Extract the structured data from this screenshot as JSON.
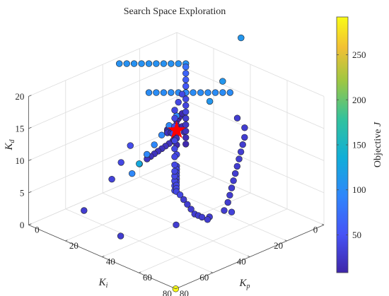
{
  "chart_data": {
    "type": "scatter3d",
    "title": "Search Space Exploration",
    "axes": {
      "x": {
        "label": "K",
        "subscript": "p",
        "ticks": [
          0,
          20,
          40,
          60,
          80
        ],
        "lim": [
          0,
          80
        ]
      },
      "y": {
        "label": "K",
        "subscript": "i",
        "ticks": [
          0,
          20,
          40,
          60,
          80
        ],
        "lim": [
          0,
          80
        ]
      },
      "z": {
        "label": "K",
        "subscript": "d",
        "ticks": [
          0,
          5,
          10,
          15,
          20
        ],
        "lim": [
          0,
          20
        ]
      }
    },
    "colorbar": {
      "label": "Objective ",
      "label_var": "J",
      "ticks": [
        50,
        100,
        150,
        200,
        250
      ],
      "range": [
        8,
        292
      ],
      "colormap": "parula"
    },
    "grid": true,
    "best_marker": {
      "x": 13,
      "y": 13,
      "z": 8,
      "shape": "star",
      "color": "#ff0000"
    },
    "points": [
      {
        "x": 20,
        "y": 15,
        "z": 19.5,
        "j": 105
      },
      {
        "x": 18,
        "y": 17,
        "z": 19.5,
        "j": 105
      },
      {
        "x": 16,
        "y": 19,
        "z": 19.5,
        "j": 105
      },
      {
        "x": 14,
        "y": 21,
        "z": 19.5,
        "j": 105
      },
      {
        "x": 12,
        "y": 23,
        "z": 19.5,
        "j": 105
      },
      {
        "x": 10,
        "y": 25,
        "z": 19.5,
        "j": 105
      },
      {
        "x": 8,
        "y": 27,
        "z": 19.5,
        "j": 105
      },
      {
        "x": 6,
        "y": 29,
        "z": 19.5,
        "j": 105
      },
      {
        "x": 4,
        "y": 31,
        "z": 19.5,
        "j": 105
      },
      {
        "x": 2,
        "y": 33,
        "z": 19.5,
        "j": 105
      },
      {
        "x": 20,
        "y": 15,
        "z": 19,
        "j": 75
      },
      {
        "x": 20,
        "y": 15,
        "z": 18,
        "j": 65
      },
      {
        "x": 20,
        "y": 15,
        "z": 17,
        "j": 60
      },
      {
        "x": 20,
        "y": 15,
        "z": 16,
        "j": 55
      },
      {
        "x": 20,
        "y": 15,
        "z": 15,
        "j": 48
      },
      {
        "x": 20,
        "y": 15,
        "z": 14,
        "j": 42
      },
      {
        "x": 20,
        "y": 15,
        "z": 13,
        "j": 38
      },
      {
        "x": 20,
        "y": 15,
        "z": 12,
        "j": 35
      },
      {
        "x": 20,
        "y": 15,
        "z": 11,
        "j": 30
      },
      {
        "x": 20,
        "y": 15,
        "z": 10,
        "j": 25
      },
      {
        "x": 20,
        "y": 15,
        "z": 9,
        "j": 20
      },
      {
        "x": 20,
        "y": 15,
        "z": 8,
        "j": 15
      },
      {
        "x": 20,
        "y": 15,
        "z": 7,
        "j": 12
      },
      {
        "x": 20,
        "y": 15,
        "z": 15,
        "j": 100
      },
      {
        "x": 22,
        "y": 13,
        "z": 15,
        "j": 100
      },
      {
        "x": 24,
        "y": 11,
        "z": 15,
        "j": 100
      },
      {
        "x": 26,
        "y": 9,
        "z": 15,
        "j": 100
      },
      {
        "x": 28,
        "y": 7,
        "z": 15,
        "j": 100
      },
      {
        "x": 30,
        "y": 5,
        "z": 15,
        "j": 100
      },
      {
        "x": 32,
        "y": 3,
        "z": 15,
        "j": 100
      },
      {
        "x": 18,
        "y": 17,
        "z": 15,
        "j": 100
      },
      {
        "x": 16,
        "y": 19,
        "z": 15,
        "j": 100
      },
      {
        "x": 14,
        "y": 21,
        "z": 15,
        "j": 100
      },
      {
        "x": 12,
        "y": 23,
        "z": 15,
        "j": 100
      },
      {
        "x": 10,
        "y": 25,
        "z": 15,
        "j": 100
      },
      {
        "x": 20,
        "y": 15,
        "z": 15,
        "j": 95
      },
      {
        "x": 20,
        "y": 20,
        "z": 12,
        "j": 95
      },
      {
        "x": 20,
        "y": 24,
        "z": 11,
        "j": 95
      },
      {
        "x": 20,
        "y": 28,
        "z": 10,
        "j": 95
      },
      {
        "x": 20,
        "y": 32,
        "z": 9,
        "j": 95
      },
      {
        "x": 20,
        "y": 36,
        "z": 8,
        "j": 95
      },
      {
        "x": 20,
        "y": 40,
        "z": 7,
        "j": 95
      },
      {
        "x": 20,
        "y": 44,
        "z": 6,
        "j": 95
      },
      {
        "x": 40,
        "y": 60,
        "z": 12,
        "j": 130
      },
      {
        "x": 10,
        "y": 35,
        "z": 8,
        "j": 45
      },
      {
        "x": 10,
        "y": 40,
        "z": 6,
        "j": 40
      },
      {
        "x": 10,
        "y": 45,
        "z": 4,
        "j": 35
      },
      {
        "x": 10,
        "y": 60,
        "z": 1,
        "j": 30
      },
      {
        "x": 18,
        "y": 18,
        "z": 8,
        "j": 20
      },
      {
        "x": 17,
        "y": 19,
        "z": 7.6,
        "j": 20
      },
      {
        "x": 16,
        "y": 20,
        "z": 7.2,
        "j": 20
      },
      {
        "x": 15,
        "y": 21,
        "z": 6.8,
        "j": 20
      },
      {
        "x": 14,
        "y": 22,
        "z": 6.4,
        "j": 20
      },
      {
        "x": 13,
        "y": 23,
        "z": 6,
        "j": 20
      },
      {
        "x": 12,
        "y": 24,
        "z": 5.6,
        "j": 20
      },
      {
        "x": 11,
        "y": 25,
        "z": 5.2,
        "j": 20
      },
      {
        "x": 10,
        "y": 26,
        "z": 4.8,
        "j": 20
      },
      {
        "x": 15,
        "y": 15,
        "z": 8,
        "j": 15
      },
      {
        "x": 14,
        "y": 14,
        "z": 8,
        "j": 12
      },
      {
        "x": 12,
        "y": 12,
        "z": 8,
        "j": 10
      },
      {
        "x": 11,
        "y": 14,
        "z": 8,
        "j": 12
      },
      {
        "x": 10,
        "y": 15,
        "z": 8,
        "j": 15
      },
      {
        "x": 11,
        "y": 16,
        "z": 8,
        "j": 18
      },
      {
        "x": 12,
        "y": 17,
        "z": 8,
        "j": 20
      },
      {
        "x": 13,
        "y": 16,
        "z": 8,
        "j": 16
      },
      {
        "x": 14,
        "y": 16,
        "z": 8,
        "j": 14
      },
      {
        "x": 9,
        "y": 13,
        "z": 8,
        "j": 14
      },
      {
        "x": 16,
        "y": 12,
        "z": 8,
        "j": 16
      },
      {
        "x": 10,
        "y": 10,
        "z": 8,
        "j": 12
      },
      {
        "x": 12,
        "y": 9,
        "z": 8,
        "j": 12
      },
      {
        "x": 12,
        "y": 13,
        "z": 7,
        "j": 10
      },
      {
        "x": 12,
        "y": 12,
        "z": 5.5,
        "j": 12
      },
      {
        "x": 13,
        "y": 13,
        "z": 7.5,
        "j": 10
      },
      {
        "x": 14,
        "y": 11,
        "z": 10.5,
        "j": 12
      },
      {
        "x": 13,
        "y": 11,
        "z": 10,
        "j": 12
      },
      {
        "x": 12,
        "y": 11,
        "z": 9.5,
        "j": 12
      },
      {
        "x": 11,
        "y": 11,
        "z": 9,
        "j": 12
      },
      {
        "x": 12,
        "y": 12,
        "z": 4,
        "j": 40
      },
      {
        "x": 14,
        "y": 14,
        "z": 2.7,
        "j": 40
      },
      {
        "x": 16,
        "y": 16,
        "z": 2.7,
        "j": 40
      },
      {
        "x": 18,
        "y": 18,
        "z": 2.7,
        "j": 40
      },
      {
        "x": 20,
        "y": 20,
        "z": 2.7,
        "j": 40
      },
      {
        "x": 22,
        "y": 22,
        "z": 2.7,
        "j": 40
      },
      {
        "x": 24,
        "y": 24,
        "z": 2.7,
        "j": 40
      },
      {
        "x": 26,
        "y": 26,
        "z": 2.7,
        "j": 40
      },
      {
        "x": 28,
        "y": 28,
        "z": 2.7,
        "j": 40
      },
      {
        "x": 30,
        "y": 30,
        "z": 2.7,
        "j": 40
      },
      {
        "x": 33,
        "y": 31,
        "z": 2.7,
        "j": 40
      },
      {
        "x": 37,
        "y": 33,
        "z": 2.7,
        "j": 30
      },
      {
        "x": 41,
        "y": 35,
        "z": 2.7,
        "j": 30
      },
      {
        "x": 45,
        "y": 37,
        "z": 2.7,
        "j": 30
      },
      {
        "x": 49,
        "y": 39,
        "z": 2.7,
        "j": 30
      },
      {
        "x": 51,
        "y": 39,
        "z": 2.7,
        "j": 30
      },
      {
        "x": 53,
        "y": 39,
        "z": 2.7,
        "j": 30
      },
      {
        "x": 56,
        "y": 39,
        "z": 2.7,
        "j": 30
      },
      {
        "x": 56,
        "y": 30,
        "z": 3,
        "j": 30
      },
      {
        "x": 56,
        "y": 28,
        "z": 4,
        "j": 30
      },
      {
        "x": 56,
        "y": 27,
        "z": 5,
        "j": 30
      },
      {
        "x": 56,
        "y": 26,
        "z": 6,
        "j": 30
      },
      {
        "x": 56,
        "y": 25,
        "z": 7,
        "j": 30
      },
      {
        "x": 56,
        "y": 24,
        "z": 8,
        "j": 30
      },
      {
        "x": 56,
        "y": 23,
        "z": 9,
        "j": 30
      },
      {
        "x": 56,
        "y": 22,
        "z": 10,
        "j": 30
      },
      {
        "x": 56,
        "y": 21,
        "z": 11,
        "j": 30
      },
      {
        "x": 56,
        "y": 20,
        "z": 12,
        "j": 30
      },
      {
        "x": 56,
        "y": 19,
        "z": 13,
        "j": 30
      },
      {
        "x": 54,
        "y": 17,
        "z": 14,
        "j": 30
      },
      {
        "x": 50,
        "y": 17,
        "z": 15,
        "j": 30
      },
      {
        "x": 20,
        "y": 17,
        "z": 15,
        "j": 40
      },
      {
        "x": 20,
        "y": 19,
        "z": 14,
        "j": 40
      },
      {
        "x": 20,
        "y": 21,
        "z": 13,
        "j": 40
      },
      {
        "x": 21,
        "y": 22,
        "z": 12,
        "j": 40
      },
      {
        "x": 22,
        "y": 23,
        "z": 11,
        "j": 40
      },
      {
        "x": 22,
        "y": 24,
        "z": 10,
        "j": 40
      },
      {
        "x": 23,
        "y": 24,
        "z": 9,
        "j": 40
      },
      {
        "x": 24,
        "y": 25,
        "z": 8,
        "j": 40
      },
      {
        "x": 25,
        "y": 26,
        "z": 7,
        "j": 40
      },
      {
        "x": 26,
        "y": 27,
        "z": 6,
        "j": 40
      },
      {
        "x": 26,
        "y": 27,
        "z": 5,
        "j": 40
      },
      {
        "x": 25,
        "y": 26,
        "z": 4,
        "j": 40
      },
      {
        "x": 24,
        "y": 25,
        "z": 3,
        "j": 40
      },
      {
        "x": 23,
        "y": 24,
        "z": 2,
        "j": 40
      },
      {
        "x": 22,
        "y": 23,
        "z": 1,
        "j": 40
      },
      {
        "x": 45,
        "y": 10,
        "z": 26,
        "j": 110
      },
      {
        "x": 35,
        "y": 10,
        "z": 18,
        "j": 110
      },
      {
        "x": 28,
        "y": 10,
        "z": 14,
        "j": 110
      },
      {
        "x": 48,
        "y": 30,
        "z": 1,
        "j": 30
      },
      {
        "x": 55,
        "y": 25,
        "z": 2,
        "j": 35
      },
      {
        "x": 48,
        "y": 48,
        "z": 2,
        "j": 30
      },
      {
        "x": 40,
        "y": 70,
        "z": 2,
        "j": 30
      },
      {
        "x": 80,
        "y": 80,
        "z": 0,
        "j": 292
      }
    ]
  }
}
